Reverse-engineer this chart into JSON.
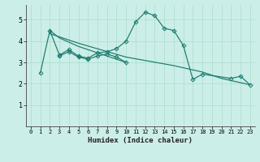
{
  "xlabel": "Humidex (Indice chaleur)",
  "background_color": "#cceee8",
  "line_color": "#1a7a6e",
  "grid_color": "#aaddcc",
  "xlim": [
    -0.5,
    23.5
  ],
  "ylim": [
    0,
    5.7
  ],
  "xticks": [
    0,
    1,
    2,
    3,
    4,
    5,
    6,
    7,
    8,
    9,
    10,
    11,
    12,
    13,
    14,
    15,
    16,
    17,
    18,
    19,
    20,
    21,
    22,
    23
  ],
  "yticks": [
    1,
    2,
    3,
    4,
    5
  ],
  "series1_x": [
    1,
    2,
    3,
    4,
    5,
    6,
    7,
    8,
    9,
    10,
    11,
    12,
    13,
    14,
    15,
    16,
    17,
    18,
    21,
    22,
    23
  ],
  "series1_y": [
    2.5,
    4.5,
    3.35,
    3.6,
    3.3,
    3.2,
    3.45,
    3.5,
    3.65,
    4.0,
    4.9,
    5.35,
    5.2,
    4.6,
    4.5,
    3.8,
    2.2,
    2.45,
    2.25,
    2.35,
    1.95
  ],
  "series2_x": [
    2,
    3,
    4,
    5,
    6,
    7,
    8,
    9,
    10
  ],
  "series2_y": [
    4.5,
    4.15,
    3.95,
    3.75,
    3.6,
    3.45,
    3.3,
    3.15,
    3.0
  ],
  "series3_x": [
    2,
    5,
    10,
    15,
    18,
    20,
    22,
    23
  ],
  "series3_y": [
    4.35,
    3.9,
    3.25,
    2.85,
    2.55,
    2.25,
    2.05,
    1.95
  ],
  "series4_x": [
    3,
    4,
    5,
    6,
    7,
    8,
    9,
    10
  ],
  "series4_y": [
    3.3,
    3.5,
    3.25,
    3.15,
    3.3,
    3.4,
    3.25,
    3.0
  ]
}
